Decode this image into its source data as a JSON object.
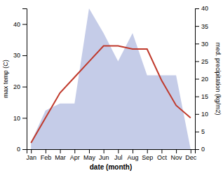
{
  "chart_data": {
    "type": "line",
    "categories": [
      "Jan",
      "Feb",
      "Mar",
      "Apr",
      "May",
      "Jun",
      "Jul",
      "Aug",
      "Sep",
      "Oct",
      "Nov",
      "Dec"
    ],
    "series": [
      {
        "type": "area",
        "axis": "y2",
        "color": "#c5cce8",
        "values": [
          2,
          11,
          13,
          13,
          40,
          33,
          25,
          33,
          21,
          21,
          21,
          0
        ]
      },
      {
        "type": "line",
        "color": "#c0392b",
        "values": [
          2,
          10,
          18,
          23,
          28,
          33,
          33,
          32,
          32,
          22,
          14,
          10
        ]
      }
    ],
    "xlabel": "date (month)",
    "ylabel": "max temp (C)",
    "y2label": "med. precipitation (kg/m2)",
    "ylim": [
      0,
      45
    ],
    "yticks": [
      0,
      10,
      20,
      30,
      40
    ],
    "y2lim": [
      0,
      40
    ],
    "y2ticks": [
      0,
      5,
      10,
      15,
      20,
      25,
      30,
      35,
      40
    ]
  }
}
